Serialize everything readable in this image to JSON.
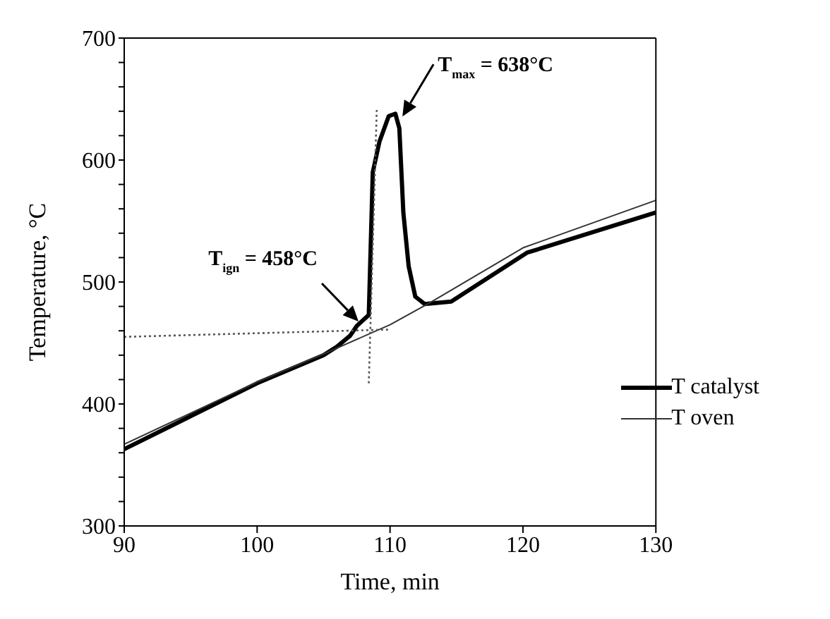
{
  "chart_data": {
    "type": "line",
    "xlabel": "Time, min",
    "ylabel": "Temperature, °C",
    "xlim": [
      90,
      130
    ],
    "xticks": [
      90,
      100,
      110,
      120,
      130
    ],
    "ylim": [
      300,
      700
    ],
    "yticks": [
      300,
      {
        "value": 320,
        "label": null
      },
      {
        "value": 340,
        "label": null
      },
      {
        "value": 360,
        "label": null
      },
      {
        "value": 380,
        "label": null
      },
      400,
      {
        "value": 420,
        "label": null
      },
      {
        "value": 440,
        "label": null
      },
      {
        "value": 460,
        "label": null
      },
      {
        "value": 480,
        "label": null
      },
      500,
      {
        "value": 520,
        "label": null
      },
      {
        "value": 540,
        "label": null
      },
      {
        "value": 560,
        "label": null
      },
      {
        "value": 580,
        "label": null
      },
      600,
      {
        "value": 620,
        "label": null
      },
      {
        "value": 640,
        "label": null
      },
      {
        "value": 660,
        "label": null
      },
      {
        "value": 680,
        "label": null
      },
      700
    ],
    "grid": false,
    "legend": "bottom right",
    "marker": "none",
    "series": [
      {
        "name": "T catalyst",
        "color": "#000000",
        "line_style": "solid",
        "x": [
          90,
          95,
          100,
          105,
          106,
          107,
          107.5,
          108.4,
          108.7,
          109.2,
          109.9,
          110.4,
          110.7,
          111.0,
          111.4,
          111.9,
          112.6,
          114.6,
          120.3,
          130
        ],
        "values": [
          363,
          390,
          417,
          440,
          447,
          456,
          464,
          473,
          590,
          615,
          636,
          638,
          626,
          557,
          513,
          488,
          482,
          484,
          524,
          557
        ]
      },
      {
        "name": "T oven",
        "color": "#333333",
        "line_style": "solid",
        "x": [
          90,
          100,
          105,
          110,
          113,
          120,
          130
        ],
        "values": [
          367,
          418,
          441,
          465,
          483,
          528,
          567
        ]
      },
      {
        "color": "#555555",
        "line_style": "dotted",
        "x": [
          90,
          109.9
        ],
        "values": [
          455,
          461
        ]
      },
      {
        "color": "#555555",
        "line_style": "dotted",
        "x": [
          108.4,
          109.0
        ],
        "values": [
          417,
          641
        ]
      }
    ],
    "annotations": [
      "T$_{ign}$ = 458°C",
      {
        "text": "T$_{max}$ = 638°C",
        "x": 110.4,
        "y": 638
      }
    ]
  }
}
